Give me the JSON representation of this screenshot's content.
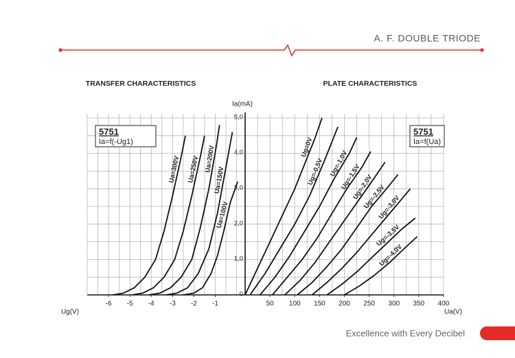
{
  "header": {
    "title": "A. F. DOUBLE TRIODE"
  },
  "footer": {
    "slogan": "Excellence with Every Decibel"
  },
  "chart_data": [
    {
      "type": "line",
      "title": "TRANSFER CHARACTERISTICS",
      "xlabel": "Ug(V)",
      "legend_box": {
        "model": "5751",
        "formula": "Ia=f(-Ug1)"
      },
      "xlim": [
        -7,
        0.4
      ],
      "ylim": [
        0,
        5
      ],
      "xticks": [
        -6,
        -5,
        -4,
        -3,
        -2,
        -1
      ],
      "xgrid": [
        -7,
        -6.5,
        -6,
        -5.5,
        -5,
        -4.5,
        -4,
        -3.5,
        -3,
        -2.5,
        -2,
        -1.5,
        -1,
        -0.5,
        0
      ],
      "ygrid": [
        0,
        0.5,
        1,
        1.5,
        2,
        2.5,
        3,
        3.5,
        4,
        4.5,
        5
      ],
      "series": [
        {
          "name": "Ua=300V",
          "color": "#111111",
          "x": [
            -5.8,
            -5.3,
            -4.8,
            -4.3,
            -3.8,
            -3.4,
            -3.0,
            -2.6,
            -2.4
          ],
          "values": [
            0,
            0.05,
            0.2,
            0.5,
            1.0,
            1.8,
            2.8,
            3.9,
            4.5
          ]
        },
        {
          "name": "Ua=250V",
          "color": "#111111",
          "x": [
            -4.9,
            -4.4,
            -3.9,
            -3.4,
            -2.9,
            -2.5,
            -2.1,
            -1.7,
            -1.5
          ],
          "values": [
            0,
            0.05,
            0.2,
            0.5,
            1.0,
            1.8,
            2.8,
            3.9,
            4.5
          ]
        },
        {
          "name": "Ua=200V",
          "color": "#111111",
          "x": [
            -4.1,
            -3.6,
            -3.1,
            -2.6,
            -2.1,
            -1.7,
            -1.3,
            -0.95,
            -0.8
          ],
          "values": [
            0,
            0.05,
            0.2,
            0.5,
            1.0,
            1.9,
            3.0,
            4.2,
            4.8
          ]
        },
        {
          "name": "Ua=150V",
          "color": "#111111",
          "x": [
            -3.3,
            -2.8,
            -2.3,
            -1.8,
            -1.3,
            -0.9,
            -0.5,
            -0.2
          ],
          "values": [
            0,
            0.05,
            0.2,
            0.6,
            1.3,
            2.3,
            3.6,
            4.6
          ]
        },
        {
          "name": "Ua=100V",
          "color": "#111111",
          "x": [
            -2.5,
            -2.0,
            -1.6,
            -1.2,
            -0.9,
            -0.6,
            -0.3,
            0.05
          ],
          "values": [
            0,
            0.05,
            0.2,
            0.6,
            1.1,
            1.8,
            2.6,
            3.2
          ]
        }
      ]
    },
    {
      "type": "line",
      "title": "PLATE CHARACTERISTICS",
      "xlabel": "Ua(V)",
      "ylabel": "Ia(mA)",
      "legend_box": {
        "model": "5751",
        "formula": "Ia=f(Ua)"
      },
      "xlim": [
        0,
        400
      ],
      "ylim": [
        0,
        5
      ],
      "xticks": [
        50,
        100,
        150,
        200,
        250,
        300,
        350,
        400
      ],
      "yticks": [
        0,
        {
          "value": 1,
          "label": "1,0"
        },
        {
          "value": 2,
          "label": "2,0"
        },
        {
          "value": 3,
          "label": "3,0"
        },
        {
          "value": 4,
          "label": "4,0"
        },
        {
          "value": 5,
          "label": "5,0"
        }
      ],
      "xgrid": [
        25,
        50,
        75,
        100,
        125,
        150,
        175,
        200,
        225,
        250,
        275,
        300,
        325,
        350,
        375,
        400
      ],
      "ygrid": [
        0.5,
        1.5,
        2.5,
        3.5,
        4.5
      ],
      "series": [
        {
          "name": "Ug=0V",
          "color": "#111111",
          "x": [
            0,
            20,
            40,
            60,
            80,
            100,
            120,
            140,
            155
          ],
          "values": [
            0,
            0.6,
            1.2,
            1.8,
            2.4,
            3.0,
            3.7,
            4.4,
            5.0
          ]
        },
        {
          "name": "Ug=-0,5V",
          "color": "#111111",
          "x": [
            10,
            40,
            70,
            100,
            130,
            160,
            187
          ],
          "values": [
            0,
            0.6,
            1.3,
            2.0,
            2.8,
            3.8,
            4.75
          ]
        },
        {
          "name": "Ug=-1,0V",
          "color": "#111111",
          "x": [
            30,
            60,
            90,
            120,
            150,
            180,
            210,
            225
          ],
          "values": [
            0,
            0.5,
            1.1,
            1.8,
            2.5,
            3.3,
            4.0,
            4.45
          ]
        },
        {
          "name": "Ug=-1,5V",
          "color": "#111111",
          "x": [
            55,
            85,
            115,
            145,
            175,
            205,
            235,
            253
          ],
          "values": [
            0,
            0.5,
            1.0,
            1.6,
            2.3,
            3.0,
            3.6,
            4.05
          ]
        },
        {
          "name": "Ug=-2,0V",
          "color": "#111111",
          "x": [
            80,
            110,
            140,
            170,
            200,
            230,
            260,
            282
          ],
          "values": [
            0,
            0.4,
            0.9,
            1.5,
            2.1,
            2.7,
            3.3,
            3.75
          ]
        },
        {
          "name": "Ug=-2,5V",
          "color": "#111111",
          "x": [
            105,
            135,
            165,
            195,
            225,
            255,
            285,
            308
          ],
          "values": [
            0,
            0.35,
            0.8,
            1.3,
            1.9,
            2.5,
            3.0,
            3.4
          ]
        },
        {
          "name": "Ug=-3,0V",
          "color": "#111111",
          "x": [
            135,
            165,
            195,
            225,
            255,
            285,
            315,
            333
          ],
          "values": [
            0,
            0.35,
            0.75,
            1.2,
            1.7,
            2.2,
            2.7,
            3.0
          ]
        },
        {
          "name": "Ug=-3,5V",
          "color": "#111111",
          "x": [
            165,
            195,
            225,
            255,
            285,
            315,
            343
          ],
          "values": [
            0,
            0.3,
            0.65,
            1.05,
            1.45,
            1.85,
            2.17
          ]
        },
        {
          "name": "Ug=-4,0V",
          "color": "#111111",
          "x": [
            200,
            230,
            260,
            290,
            320,
            347
          ],
          "values": [
            0,
            0.25,
            0.55,
            0.9,
            1.3,
            1.65
          ]
        }
      ]
    }
  ]
}
